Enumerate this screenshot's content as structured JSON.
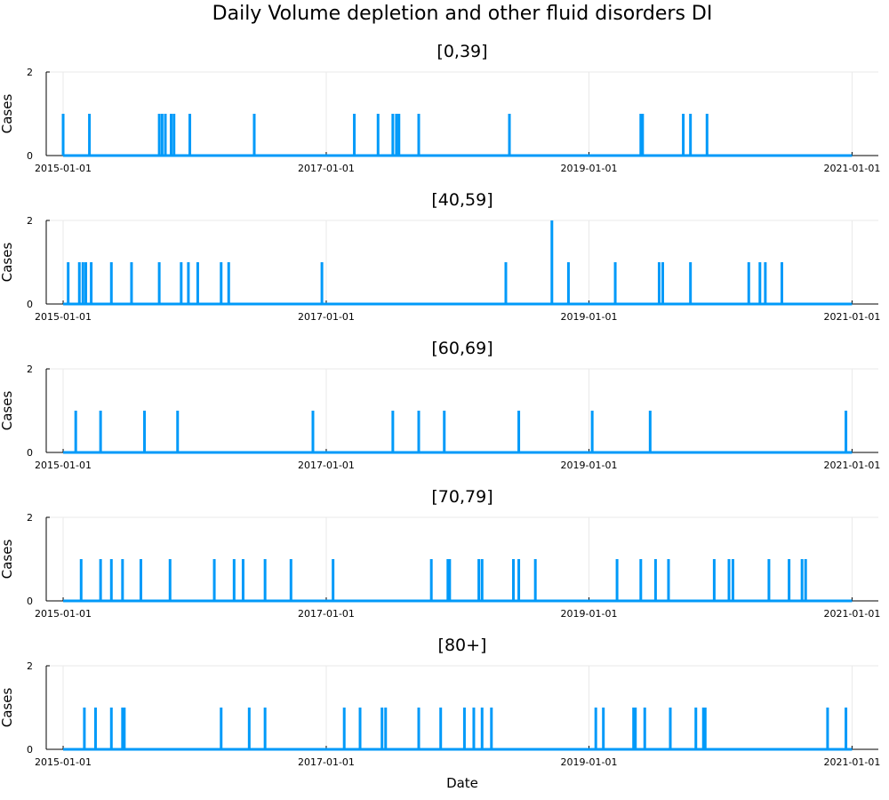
{
  "chart_data": {
    "type": "line",
    "title": "Daily Volume depletion and other fluid disorders DI",
    "xlabel": "Date",
    "ylabel": "Cases",
    "color": "#009af9",
    "xlim": [
      "2014-11-15",
      "2021-03-15"
    ],
    "ylim": [
      0,
      2
    ],
    "yticks": [
      0,
      2
    ],
    "xticks": [
      "2015-01-01",
      "2017-01-01",
      "2019-01-01",
      "2021-01-01"
    ],
    "grid": true,
    "legend": "none",
    "panels": [
      {
        "title": "[0,39]",
        "series": [
          {
            "x": [
              "2015-01-01",
              "2015-03-15",
              "2015-09-25",
              "2015-10-03",
              "2015-10-12",
              "2015-10-28",
              "2015-11-05",
              "2015-12-19",
              "2016-06-15",
              "2017-03-20",
              "2017-05-25",
              "2017-07-05",
              "2017-07-15",
              "2017-07-22",
              "2017-09-15",
              "2018-05-25",
              "2019-05-25",
              "2019-05-30",
              "2019-09-20",
              "2019-10-10",
              "2019-11-25"
            ],
            "y": [
              1,
              1,
              1,
              1,
              1,
              1,
              1,
              1,
              1,
              1,
              1,
              1,
              1,
              1,
              1,
              1,
              1,
              1,
              1,
              1,
              1
            ]
          }
        ]
      },
      {
        "title": "[40,59]",
        "series": [
          {
            "x": [
              "2015-01-15",
              "2015-02-15",
              "2015-02-25",
              "2015-03-05",
              "2015-03-20",
              "2015-05-15",
              "2015-07-10",
              "2015-09-25",
              "2015-11-25",
              "2015-12-15",
              "2016-01-10",
              "2016-03-15",
              "2016-04-05",
              "2016-12-20",
              "2018-05-15",
              "2018-09-20",
              "2018-11-05",
              "2019-03-15",
              "2019-07-15",
              "2019-07-25",
              "2019-10-10",
              "2020-03-20",
              "2020-04-20",
              "2020-05-05",
              "2020-06-20"
            ],
            "y": [
              1,
              1,
              1,
              1,
              1,
              1,
              1,
              1,
              1,
              1,
              1,
              1,
              1,
              1,
              1,
              2,
              1,
              1,
              1,
              1,
              1,
              1,
              1,
              1,
              1
            ]
          }
        ]
      },
      {
        "title": "[60,69]",
        "series": [
          {
            "x": [
              "2015-02-05",
              "2015-04-15",
              "2015-08-15",
              "2015-11-15",
              "2016-11-25",
              "2017-07-05",
              "2017-09-15",
              "2017-11-25",
              "2018-06-20",
              "2019-01-10",
              "2019-06-20",
              "2020-12-15"
            ],
            "y": [
              1,
              1,
              1,
              1,
              1,
              1,
              1,
              1,
              1,
              1,
              1,
              1
            ]
          }
        ]
      },
      {
        "title": "[70,79]",
        "series": [
          {
            "x": [
              "2015-02-20",
              "2015-04-15",
              "2015-05-15",
              "2015-06-15",
              "2015-08-05",
              "2015-10-25",
              "2016-02-25",
              "2016-04-20",
              "2016-05-15",
              "2016-07-15",
              "2016-09-25",
              "2017-01-20",
              "2017-10-20",
              "2017-12-05",
              "2017-12-10",
              "2018-03-01",
              "2018-03-10",
              "2018-06-05",
              "2018-06-20",
              "2018-08-05",
              "2019-03-20",
              "2019-05-25",
              "2019-07-05",
              "2019-08-10",
              "2019-12-15",
              "2020-01-25",
              "2020-02-05",
              "2020-05-15",
              "2020-07-10",
              "2020-08-15",
              "2020-08-25"
            ],
            "y": [
              1,
              1,
              1,
              1,
              1,
              1,
              1,
              1,
              1,
              1,
              1,
              1,
              1,
              1,
              1,
              1,
              1,
              1,
              1,
              1,
              1,
              1,
              1,
              1,
              1,
              1,
              1,
              1,
              1,
              1,
              1
            ]
          }
        ]
      },
      {
        "title": "[80+]",
        "series": [
          {
            "x": [
              "2015-03-01",
              "2015-04-01",
              "2015-05-15",
              "2015-06-15",
              "2015-06-20",
              "2016-03-15",
              "2016-06-01",
              "2016-07-15",
              "2017-02-20",
              "2017-04-05",
              "2017-06-05",
              "2017-06-15",
              "2017-09-15",
              "2017-11-15",
              "2018-01-20",
              "2018-02-15",
              "2018-03-10",
              "2018-04-05",
              "2019-01-20",
              "2019-02-10",
              "2019-05-05",
              "2019-05-10",
              "2019-06-05",
              "2019-08-15",
              "2019-10-25",
              "2019-11-15",
              "2019-11-20",
              "2020-10-25",
              "2020-12-15"
            ],
            "y": [
              1,
              1,
              1,
              1,
              1,
              1,
              1,
              1,
              1,
              1,
              1,
              1,
              1,
              1,
              1,
              1,
              1,
              1,
              1,
              1,
              1,
              1,
              1,
              1,
              1,
              1,
              1,
              1,
              1
            ]
          }
        ]
      }
    ]
  }
}
